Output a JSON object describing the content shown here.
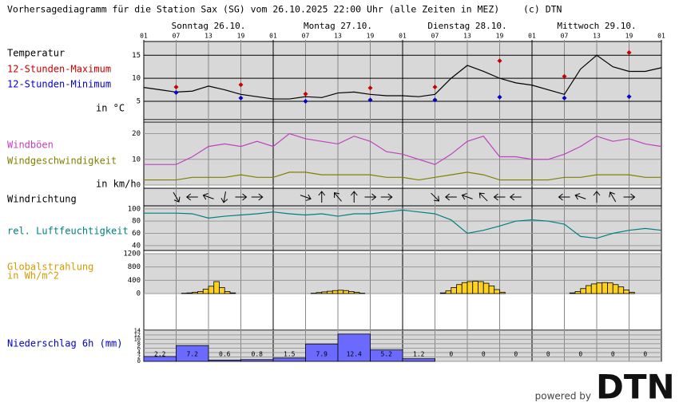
{
  "title": "Vorhersagediagramm für die Station Sax (SG) vom 26.10.2025 22:00 Uhr (alle Zeiten in MEZ)",
  "credit": "(c) DTN",
  "time_ticks": [
    "01",
    "07",
    "13",
    "19",
    "01",
    "07",
    "13",
    "19",
    "01",
    "07",
    "13",
    "19",
    "01",
    "07",
    "13",
    "19",
    "01"
  ],
  "days": [
    "Sonntag 26.10.",
    "Montag 27.10.",
    "Dienstag 28.10.",
    "Mittwoch 29.10."
  ],
  "chart_data": [
    {
      "type": "line",
      "ylabel": "in °C",
      "ylim": [
        1,
        18
      ],
      "yticks": [
        5,
        10,
        15
      ],
      "series": [
        {
          "name": "Temperatur",
          "color": "#000000",
          "values": [
            8,
            7.5,
            7,
            7.2,
            8.3,
            7.5,
            6.5,
            6,
            5.5,
            5.5,
            6,
            5.8,
            6.8,
            7,
            6.5,
            6.2,
            6.2,
            6,
            6.5,
            10,
            12.8,
            11.5,
            10,
            9,
            8.5,
            7.5,
            6.5,
            12,
            15,
            12.5,
            11.5,
            11.5,
            12.3
          ]
        },
        {
          "name": "12-Stunden-Maximum",
          "color": "#cc0000",
          "marker": "diamond",
          "values": [
            8.1,
            8.6,
            6.6,
            7.9,
            8.1,
            13.8,
            10.4,
            15.6
          ]
        },
        {
          "name": "12-Stunden-Minimum",
          "color": "#0000cc",
          "marker": "diamond",
          "values": [
            6.9,
            5.7,
            5.0,
            5.3,
            5.3,
            5.9,
            5.7,
            6.0
          ]
        }
      ]
    },
    {
      "type": "line",
      "ylabel": "in km/h",
      "ylim": [
        0,
        24.5
      ],
      "yticks": [
        0,
        10,
        20
      ],
      "series": [
        {
          "name": "Windböen",
          "color": "#c040c0",
          "values": [
            8,
            8,
            8,
            11,
            15,
            16,
            15,
            17,
            15,
            20,
            18,
            17,
            16,
            19,
            17,
            13,
            12,
            10,
            8,
            12,
            17,
            19,
            11,
            11,
            10,
            10,
            12,
            15,
            19,
            17,
            18,
            16,
            15
          ]
        },
        {
          "name": "Windgeschwindigkeit",
          "color": "#808000",
          "values": [
            2,
            2,
            2,
            3,
            3,
            3,
            4,
            3,
            3,
            5,
            5,
            4,
            4,
            4,
            4,
            3,
            3,
            2,
            3,
            4,
            5,
            4,
            2,
            2,
            2,
            2,
            3,
            3,
            4,
            4,
            4,
            3,
            3
          ]
        }
      ]
    },
    {
      "type": "arrows",
      "title": "Windrichtung",
      "values": [
        null,
        null,
        60,
        180,
        200,
        100,
        0,
        0,
        null,
        null,
        20,
        270,
        230,
        270,
        0,
        0,
        null,
        null,
        45,
        180,
        200,
        225,
        180,
        180,
        null,
        null,
        180,
        200,
        270,
        240,
        0,
        null,
        null
      ]
    },
    {
      "type": "line",
      "ylim": [
        32,
        105
      ],
      "yticks": [
        40,
        60,
        80,
        100
      ],
      "series": [
        {
          "name": "rel. Luftfeuchtigkeit",
          "color": "#008080",
          "values": [
            93,
            93,
            93,
            92,
            85,
            88,
            90,
            92,
            95,
            92,
            90,
            92,
            88,
            92,
            92,
            95,
            98,
            95,
            92,
            82,
            60,
            65,
            72,
            80,
            82,
            80,
            75,
            55,
            52,
            60,
            65,
            68,
            65
          ]
        }
      ]
    },
    {
      "type": "bar",
      "ylabel": "in Wh/m^2",
      "ylim": [
        0,
        1200
      ],
      "yticks": [
        0,
        400,
        800,
        1200
      ],
      "series": [
        {
          "name": "Globalstrahlung",
          "color": "#ffd21f",
          "label_color": "#d89a00",
          "values": [
            0,
            0,
            0,
            0,
            0,
            0,
            0,
            10,
            20,
            40,
            60,
            130,
            220,
            360,
            180,
            60,
            20,
            0,
            0,
            0,
            0,
            0,
            0,
            0,
            0,
            0,
            0,
            0,
            0,
            0,
            0,
            10,
            30,
            50,
            70,
            90,
            100,
            90,
            60,
            40,
            10,
            0,
            0,
            0,
            0,
            0,
            0,
            0,
            0,
            0,
            0,
            0,
            0,
            0,
            0,
            20,
            80,
            180,
            270,
            330,
            360,
            370,
            360,
            310,
            230,
            120,
            40,
            0,
            0,
            0,
            0,
            0,
            0,
            0,
            0,
            0,
            0,
            0,
            0,
            20,
            60,
            150,
            240,
            290,
            320,
            330,
            320,
            270,
            200,
            110,
            40,
            0,
            0,
            0,
            0,
            0
          ]
        }
      ]
    },
    {
      "type": "bar",
      "ylim": [
        0,
        14.5
      ],
      "yticks": [
        0,
        2,
        4,
        6,
        8,
        10,
        12,
        14
      ],
      "series": [
        {
          "name": "Niederschlag 6h (mm)",
          "color": "#6a6aff",
          "label_color": "#0000cc",
          "values": [
            2.2,
            7.2,
            0.6,
            0.8,
            1.5,
            7.9,
            12.4,
            5.2,
            1.2,
            0,
            0,
            0,
            0,
            0,
            0,
            0
          ]
        }
      ]
    }
  ],
  "footer": {
    "powered_by": "powered by",
    "logo": "DTN"
  }
}
